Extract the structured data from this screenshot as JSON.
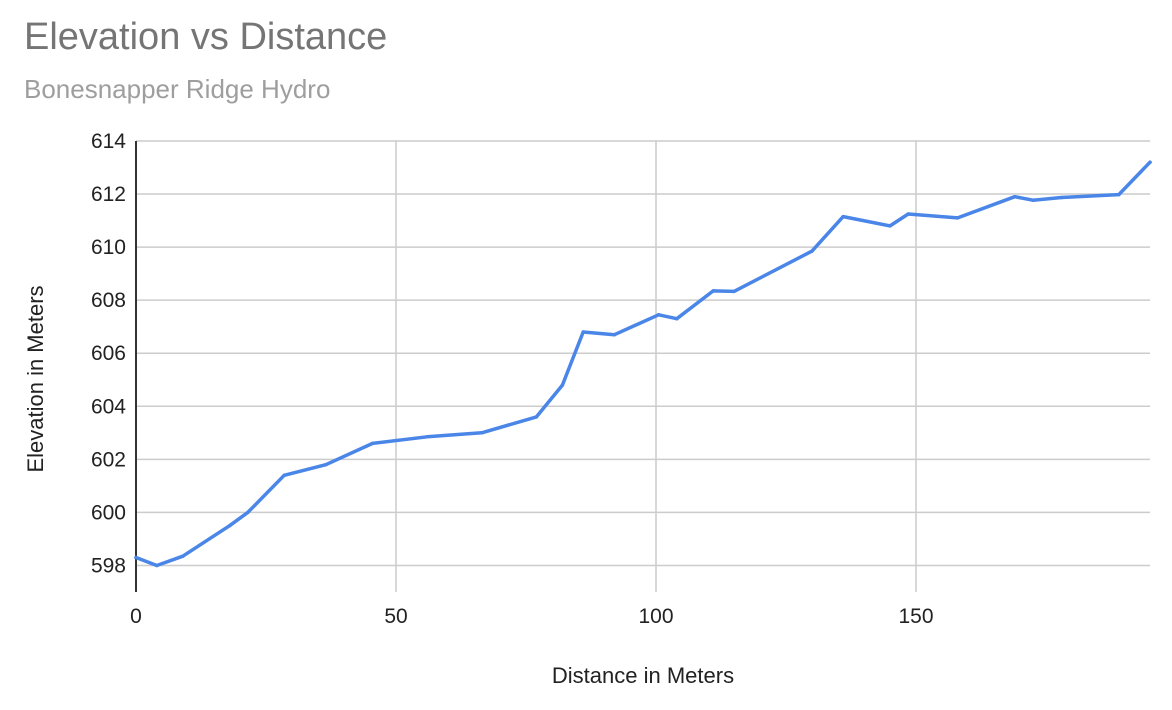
{
  "chart_data": {
    "type": "line",
    "title": "Elevation vs Distance",
    "subtitle": "Bonesnapper Ridge Hydro",
    "xlabel": "Distance in Meters",
    "ylabel": "Elevation in Meters",
    "xlim": [
      0,
      195
    ],
    "ylim": [
      597,
      614
    ],
    "xticks": [
      0,
      50,
      100,
      150
    ],
    "yticks": [
      598,
      600,
      602,
      604,
      606,
      608,
      610,
      612,
      614
    ],
    "grid": true,
    "legend": "none",
    "series": [
      {
        "color": "#4a86e8",
        "points": [
          [
            0,
            598.3
          ],
          [
            4,
            598.0
          ],
          [
            9,
            598.35
          ],
          [
            18,
            599.5
          ],
          [
            21.5,
            600.0
          ],
          [
            28.5,
            601.4
          ],
          [
            36.5,
            601.8
          ],
          [
            45.5,
            602.6
          ],
          [
            56,
            602.85
          ],
          [
            66.5,
            603.0
          ],
          [
            77,
            603.6
          ],
          [
            82,
            604.8
          ],
          [
            86,
            606.8
          ],
          [
            92,
            606.7
          ],
          [
            100.5,
            607.45
          ],
          [
            104,
            607.3
          ],
          [
            111,
            608.35
          ],
          [
            115,
            608.33
          ],
          [
            130,
            609.85
          ],
          [
            136,
            611.15
          ],
          [
            145,
            610.8
          ],
          [
            148.5,
            611.25
          ],
          [
            158,
            611.1
          ],
          [
            169,
            611.9
          ],
          [
            172.5,
            611.77
          ],
          [
            178,
            611.87
          ],
          [
            189,
            611.98
          ],
          [
            195,
            613.2
          ]
        ]
      }
    ]
  }
}
